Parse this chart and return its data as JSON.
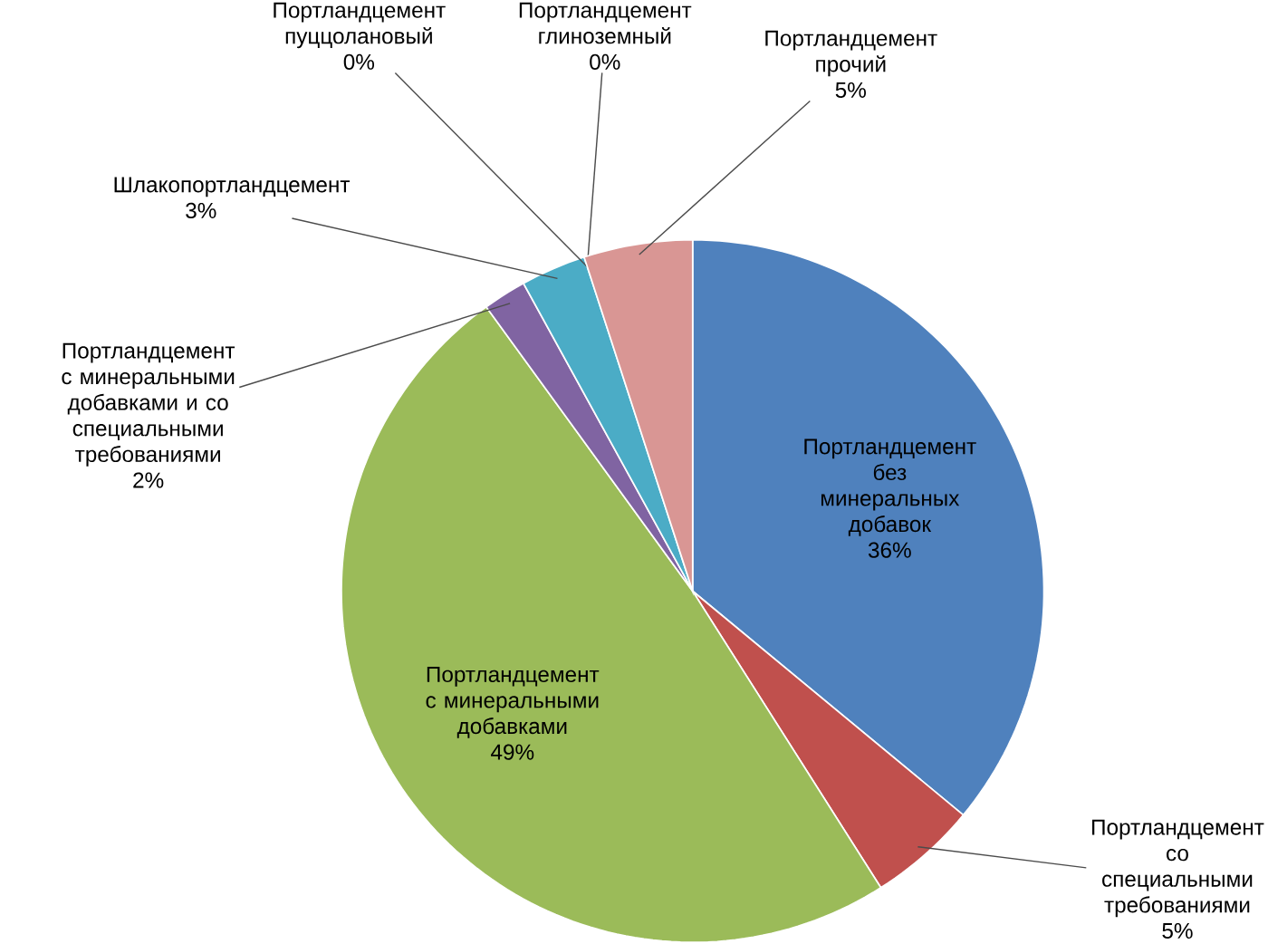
{
  "chart_data": {
    "type": "pie",
    "categories": [
      "Портландцемент без минеральных добавок",
      "Портландцемент со специальными требованиями",
      "Портландцемент с минеральными добавками",
      "Портландцемент с минеральными добавками и со специальными требованиями",
      "Шлакопортландцемент",
      "Портландцемент пуццолановый",
      "Портландцемент глиноземный",
      "Портландцемент прочий"
    ],
    "values": [
      36,
      5,
      49,
      2,
      3,
      0,
      0,
      5
    ],
    "value_labels": [
      "36%",
      "5%",
      "49%",
      "2%",
      "3%",
      "0%",
      "0%",
      "5%"
    ],
    "colors": [
      "#4f81bd",
      "#c0504d",
      "#9bbb59",
      "#8064a2",
      "#4bacc6",
      "#f79646",
      "#2c4d75",
      "#d99694"
    ],
    "data_labels": true
  }
}
